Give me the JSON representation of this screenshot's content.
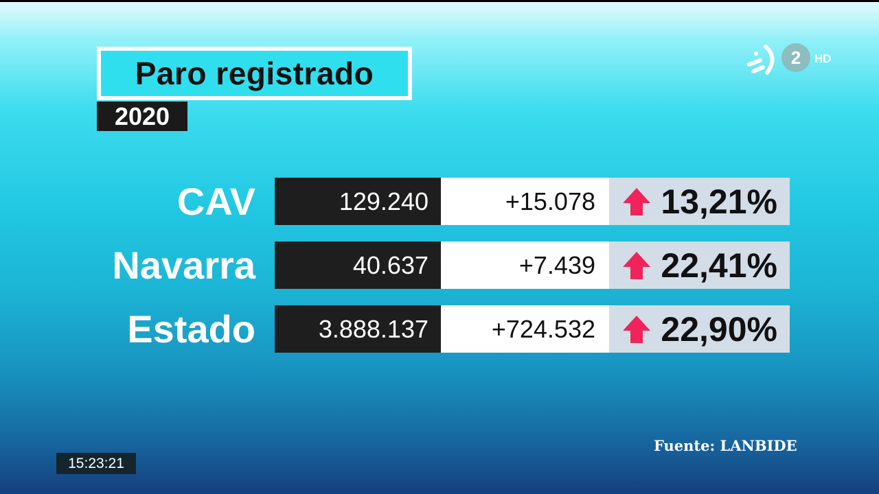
{
  "title": "Paro registrado",
  "year": "2020",
  "rows": [
    {
      "region": "CAV",
      "total": "129.240",
      "change": "+15.078",
      "trend": "up",
      "percent": "13,21%"
    },
    {
      "region": "Navarra",
      "total": "40.637",
      "change": "+7.439",
      "trend": "up",
      "percent": "22,41%"
    },
    {
      "region": "Estado",
      "total": "3.888.137",
      "change": "+724.532",
      "trend": "up",
      "percent": "22,90%"
    }
  ],
  "source": "Fuente: LANBIDE",
  "clock": "15:23:21",
  "channel": {
    "number": "2",
    "quality": "HD"
  },
  "colors": {
    "accent": "#30dfee",
    "arrow_up": "#f0245a",
    "dark_cell": "#1e1e1e",
    "percent_cell": "#d3dde8"
  }
}
